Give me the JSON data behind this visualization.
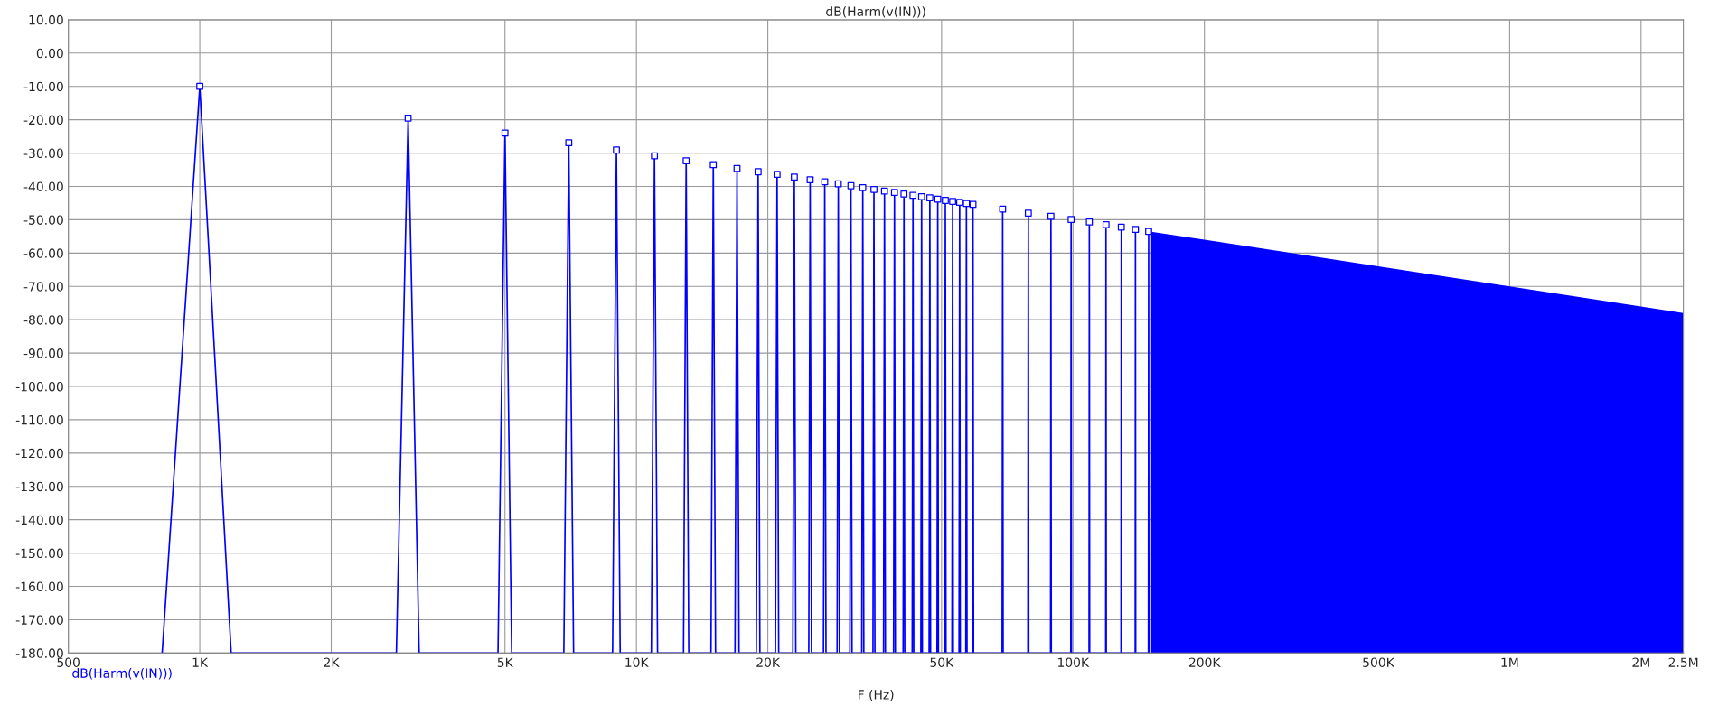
{
  "chart_data": {
    "type": "line",
    "title": "dB(Harm(v(IN)))",
    "xlabel": "F (Hz)",
    "log": "x",
    "grid": true,
    "xlim": [
      500,
      2500000
    ],
    "ylim": [
      -180,
      10
    ],
    "xticks": [
      500,
      {
        "value": 1000,
        "label": "1K"
      },
      {
        "value": 2000,
        "label": "2K"
      },
      {
        "value": 5000,
        "label": "5K"
      },
      {
        "value": 10000,
        "label": "10K"
      },
      {
        "value": 20000,
        "label": "20K"
      },
      {
        "value": 50000,
        "label": "50K"
      },
      {
        "value": 100000,
        "label": "100K"
      },
      {
        "value": 200000,
        "label": "200K"
      },
      {
        "value": 500000,
        "label": "500K"
      },
      {
        "value": 1000000,
        "label": "1M"
      },
      {
        "value": 2000000,
        "label": "2M"
      },
      {
        "value": 2500000,
        "label": "2.5M"
      }
    ],
    "yticks": [
      {
        "value": 10,
        "label": "10.00"
      },
      {
        "value": 0,
        "label": "0.00"
      },
      {
        "value": -10,
        "label": "-10.00"
      },
      {
        "value": -20,
        "label": "-20.00"
      },
      {
        "value": -30,
        "label": "-30.00"
      },
      {
        "value": -40,
        "label": "-40.00"
      },
      {
        "value": -50,
        "label": "-50.00"
      },
      {
        "value": -60,
        "label": "-60.00"
      },
      {
        "value": -70,
        "label": "-70.00"
      },
      {
        "value": -80,
        "label": "-80.00"
      },
      {
        "value": -90,
        "label": "-90.00"
      },
      {
        "value": -100,
        "label": "-100.00"
      },
      {
        "value": -110,
        "label": "-110.00"
      },
      {
        "value": -120,
        "label": "-120.00"
      },
      {
        "value": -130,
        "label": "-130.00"
      },
      {
        "value": -140,
        "label": "-140.00"
      },
      {
        "value": -150,
        "label": "-150.00"
      },
      {
        "value": -160,
        "label": "-160.00"
      },
      {
        "value": -170,
        "label": "-170.00"
      },
      {
        "value": -180,
        "label": "-180.00"
      }
    ],
    "series": [
      {
        "name": "dB(Harm(v(IN)))",
        "color": "#0000ff",
        "line_style": "solid",
        "x": [
          820,
          1000,
          1180,
          2820,
          3000,
          3180,
          4820,
          5000,
          5180,
          6820,
          7000,
          7180,
          8820,
          9000,
          9180,
          10820,
          11000,
          11180,
          12820,
          13000,
          13180,
          14820,
          15000,
          15180,
          16820,
          17000,
          17180,
          18820,
          19000,
          19180,
          20820,
          21000,
          21180,
          22820,
          23000,
          23180,
          24820,
          25000,
          25180,
          26820,
          27000,
          27180,
          28820,
          29000,
          29180,
          30820,
          31000,
          31180,
          32820,
          33000,
          33180,
          34820,
          35000,
          35180,
          36820,
          37000,
          37180,
          38820,
          39000,
          39180,
          40820,
          41000,
          41180,
          42820,
          43000,
          43180,
          44820,
          45000,
          45180,
          46820,
          47000,
          47180,
          48820,
          49000,
          49180,
          50820,
          51000,
          51180,
          52820,
          53000,
          53180,
          54820,
          55000,
          55180,
          56820,
          57000,
          57180,
          58820,
          59000,
          59180,
          68820,
          69000,
          69180,
          78820,
          79000,
          79180,
          88820,
          89000,
          89180,
          98820,
          99000,
          99180,
          108820,
          109000,
          109180,
          118820,
          119000,
          119180,
          128820,
          129000,
          129180,
          138820,
          139000,
          139180,
          148820,
          149000,
          149180
        ],
        "values": [
          -180,
          -10,
          -180,
          -180,
          -19.5,
          -180,
          -180,
          -24.0,
          -180,
          -180,
          -26.9,
          -180,
          -180,
          -29.1,
          -180,
          -180,
          -30.8,
          -180,
          -180,
          -32.3,
          -180,
          -180,
          -33.5,
          -180,
          -180,
          -34.6,
          -180,
          -180,
          -35.6,
          -180,
          -180,
          -36.4,
          -180,
          -180,
          -37.2,
          -180,
          -180,
          -38.0,
          -180,
          -180,
          -38.6,
          -180,
          -180,
          -39.2,
          -180,
          -180,
          -39.8,
          -180,
          -180,
          -40.4,
          -180,
          -180,
          -40.9,
          -180,
          -180,
          -41.4,
          -180,
          -180,
          -41.8,
          -180,
          -180,
          -42.3,
          -180,
          -180,
          -42.7,
          -180,
          -180,
          -43.1,
          -180,
          -180,
          -43.4,
          -180,
          -180,
          -43.8,
          -180,
          -180,
          -44.2,
          -180,
          -180,
          -44.5,
          -180,
          -180,
          -44.8,
          -180,
          -180,
          -45.1,
          -180,
          -180,
          -45.4,
          -180,
          -180,
          -46.8,
          -180,
          -180,
          -48.0,
          -180,
          -180,
          -49.0,
          -180,
          -180,
          -49.9,
          -180,
          -180,
          -50.7,
          -180,
          -180,
          -51.5,
          -180,
          -180,
          -52.2,
          -180,
          -180,
          -52.9,
          -180,
          -180,
          -53.5,
          -180
        ]
      },
      {
        "type": "scatter",
        "color": "#0000ff",
        "marker": "square",
        "x": [
          1000,
          3000,
          5000,
          7000,
          9000,
          11000,
          13000,
          15000,
          17000,
          19000,
          21000,
          23000,
          25000,
          27000,
          29000,
          31000,
          33000,
          35000,
          37000,
          39000,
          41000,
          43000,
          45000,
          47000,
          49000,
          51000,
          53000,
          55000,
          57000,
          59000,
          69000,
          79000,
          89000,
          99000,
          109000,
          119000,
          129000,
          139000,
          149000
        ],
        "values": [
          -10,
          -19.5,
          -24.0,
          -26.9,
          -29.1,
          -30.8,
          -32.3,
          -33.5,
          -34.6,
          -35.6,
          -36.4,
          -37.2,
          -38.0,
          -38.6,
          -39.2,
          -39.8,
          -40.4,
          -40.9,
          -41.4,
          -41.8,
          -42.3,
          -42.7,
          -43.1,
          -43.4,
          -43.8,
          -44.2,
          -44.5,
          -44.8,
          -45.1,
          -45.4,
          -46.8,
          -48.0,
          -49.0,
          -49.9,
          -50.7,
          -51.5,
          -52.2,
          -52.9,
          -53.5
        ]
      },
      {
        "type": "area",
        "color": "#0000ff",
        "x": [
          151000,
          151000,
          200000,
          300000,
          500000,
          1000000,
          2000000,
          2500000,
          2500000
        ],
        "values": [
          -180,
          -53.6,
          -56.0,
          -59.5,
          -64.0,
          -70.0,
          -76.0,
          -78.0,
          -180
        ]
      }
    ]
  }
}
